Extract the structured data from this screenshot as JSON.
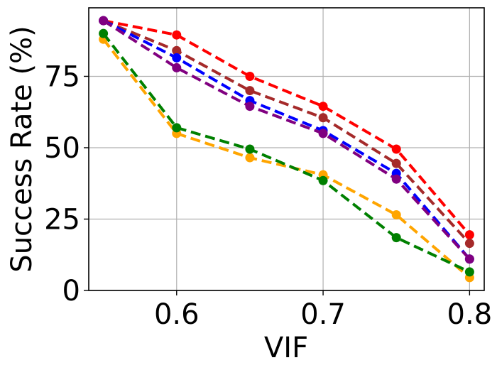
{
  "chart_data": {
    "type": "line",
    "xlabel": "VIF",
    "ylabel": "Success Rate (%)",
    "xlim": [
      0.54,
      0.81
    ],
    "ylim": [
      0,
      99
    ],
    "x": [
      0.55,
      0.6,
      0.65,
      0.7,
      0.75,
      0.8
    ],
    "xticks": [
      0.6,
      0.7,
      0.8
    ],
    "xtick_labels": [
      "0.6",
      "0.7",
      "0.8"
    ],
    "yticks": [
      0,
      25,
      50,
      75
    ],
    "ytick_labels": [
      "0",
      "25",
      "50",
      "75"
    ],
    "grid": true,
    "series": [
      {
        "name": "red",
        "color": "#ff0000",
        "values": [
          94.5,
          89.5,
          75.0,
          64.5,
          49.5,
          19.5
        ]
      },
      {
        "name": "brown",
        "color": "#a52a2a",
        "values": [
          94.5,
          84.0,
          70.0,
          60.5,
          44.5,
          16.5
        ]
      },
      {
        "name": "blue",
        "color": "#0000ff",
        "values": [
          94.5,
          81.5,
          66.5,
          56.0,
          41.0,
          11.0
        ]
      },
      {
        "name": "purple",
        "color": "#800080",
        "values": [
          94.5,
          78.0,
          64.5,
          55.0,
          39.0,
          11.0
        ]
      },
      {
        "name": "orange",
        "color": "#ffa500",
        "values": [
          88.0,
          55.0,
          46.5,
          40.5,
          26.5,
          4.5
        ]
      },
      {
        "name": "green",
        "color": "#008000",
        "values": [
          90.0,
          57.0,
          49.5,
          38.5,
          18.5,
          6.5
        ]
      }
    ]
  }
}
